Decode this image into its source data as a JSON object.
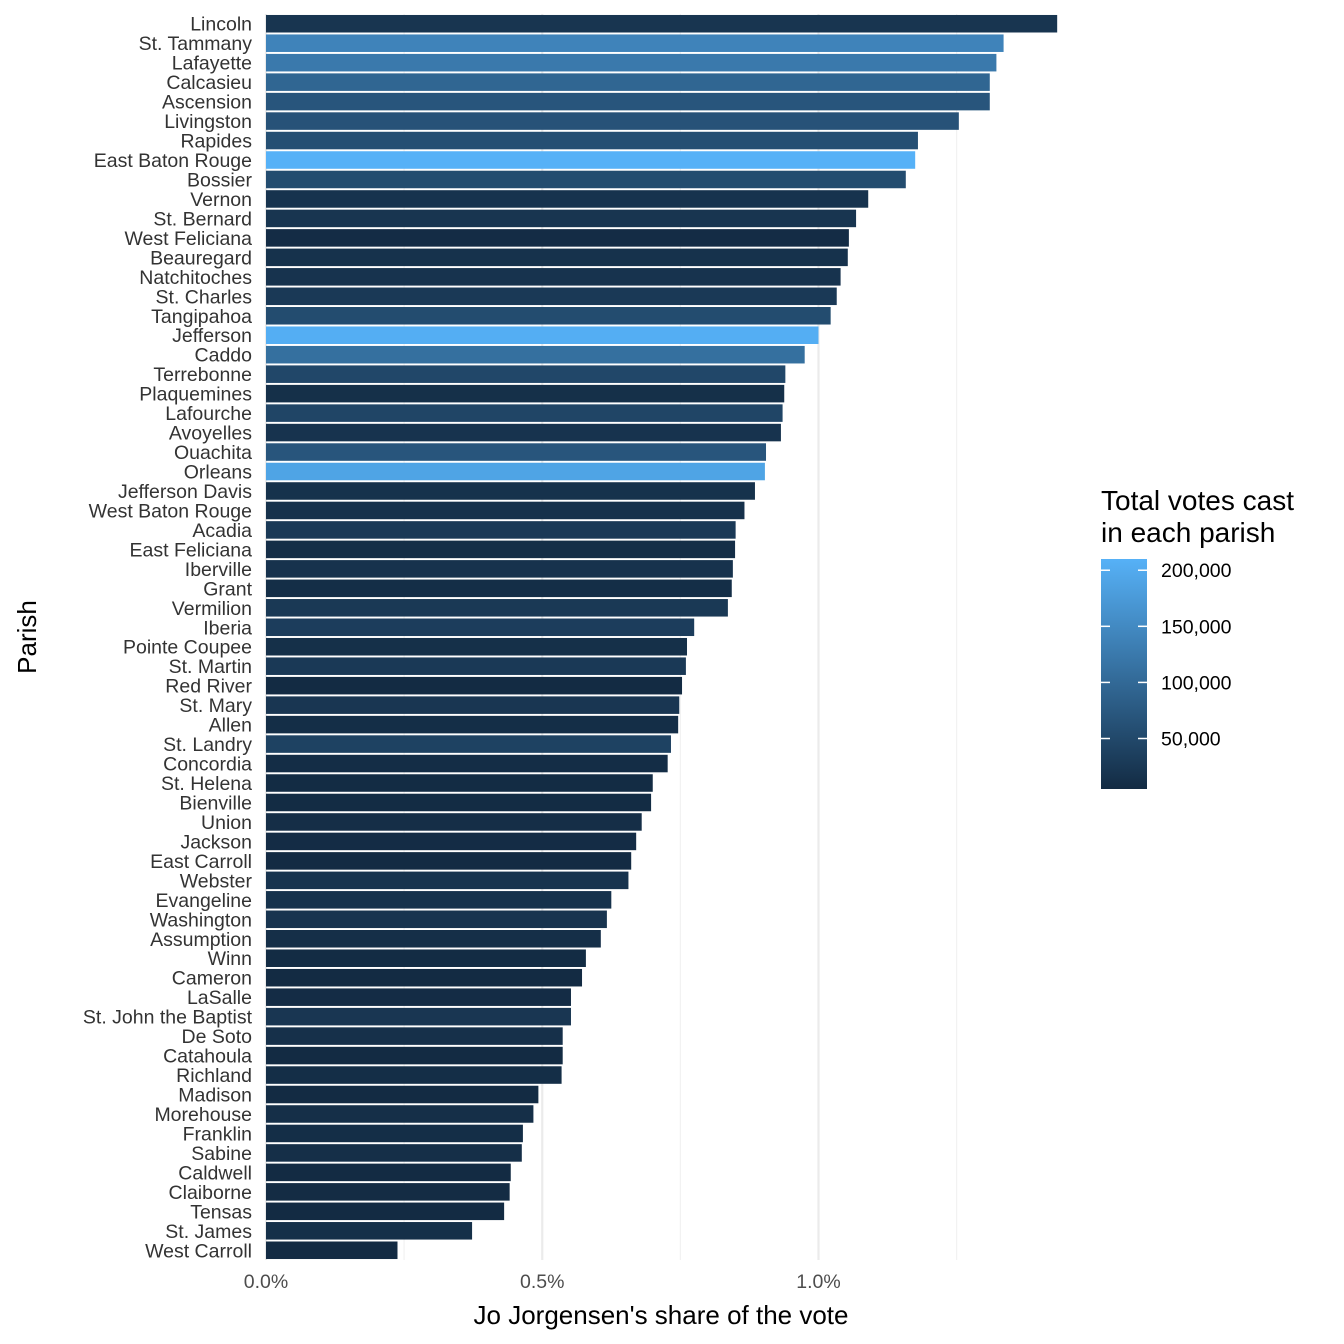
{
  "chart_data": {
    "type": "bar",
    "orientation": "horizontal",
    "title": "",
    "xlabel": "Jo Jorgensen's share of the vote",
    "ylabel": "Parish",
    "xlim": [
      0,
      0.0147
    ],
    "x_ticks": [
      {
        "value": 0,
        "label": "0.0%"
      },
      {
        "value": 0.005,
        "label": "0.5%"
      },
      {
        "value": 0.01,
        "label": "1.0%"
      }
    ],
    "x_minor_ticks": [
      0.0025,
      0.0075,
      0.0125
    ],
    "grid": true,
    "legend": {
      "title_lines": [
        "Total votes cast",
        "in each parish"
      ],
      "position": "right",
      "range": [
        5000,
        210000
      ],
      "ticks": [
        {
          "value": 50000,
          "label": "50,000"
        },
        {
          "value": 100000,
          "label": "100,000"
        },
        {
          "value": 150000,
          "label": "150,000"
        },
        {
          "value": 200000,
          "label": "200,000"
        }
      ],
      "color_low": "#132B43",
      "color_high": "#56B1F7"
    },
    "categories": [
      "Lincoln",
      "St. Tammany",
      "Lafayette",
      "Calcasieu",
      "Ascension",
      "Livingston",
      "Rapides",
      "East Baton Rouge",
      "Bossier",
      "Vernon",
      "St. Bernard",
      "West Feliciana",
      "Beauregard",
      "Natchitoches",
      "St. Charles",
      "Tangipahoa",
      "Jefferson",
      "Caddo",
      "Terrebonne",
      "Plaquemines",
      "Lafourche",
      "Avoyelles",
      "Ouachita",
      "Orleans",
      "Jefferson Davis",
      "West Baton Rouge",
      "Acadia",
      "East Feliciana",
      "Iberville",
      "Grant",
      "Vermilion",
      "Iberia",
      "Pointe Coupee",
      "St. Martin",
      "Red River",
      "St. Mary",
      "Allen",
      "St. Landry",
      "Concordia",
      "St. Helena",
      "Bienville",
      "Union",
      "Jackson",
      "East Carroll",
      "Webster",
      "Evangeline",
      "Washington",
      "Assumption",
      "Winn",
      "Cameron",
      "LaSalle",
      "St. John the Baptist",
      "De Soto",
      "Catahoula",
      "Richland",
      "Madison",
      "Morehouse",
      "Franklin",
      "Sabine",
      "Caldwell",
      "Claiborne",
      "Tensas",
      "St. James",
      "West Carroll"
    ],
    "values": [
      0.01432,
      0.01335,
      0.01322,
      0.0131,
      0.0131,
      0.01254,
      0.0118,
      0.01175,
      0.01158,
      0.0109,
      0.01068,
      0.01055,
      0.01053,
      0.0104,
      0.01033,
      0.01022,
      0.01,
      0.00975,
      0.0094,
      0.00938,
      0.00935,
      0.00932,
      0.00905,
      0.00903,
      0.00885,
      0.00866,
      0.0085,
      0.00849,
      0.00845,
      0.00843,
      0.00836,
      0.00775,
      0.00762,
      0.0076,
      0.00753,
      0.00748,
      0.00746,
      0.00733,
      0.00727,
      0.007,
      0.00697,
      0.0068,
      0.0067,
      0.00661,
      0.00656,
      0.00625,
      0.00617,
      0.00606,
      0.00579,
      0.00572,
      0.00552,
      0.00552,
      0.00537,
      0.00537,
      0.00535,
      0.00493,
      0.00484,
      0.00465,
      0.00463,
      0.00443,
      0.00441,
      0.00431,
      0.00373,
      0.00238
    ],
    "total_votes": [
      20000,
      140000,
      125000,
      95000,
      70000,
      65000,
      60000,
      210000,
      55000,
      17000,
      20000,
      7000,
      15000,
      17000,
      27000,
      55000,
      205000,
      110000,
      48000,
      12000,
      45000,
      18000,
      70000,
      190000,
      15000,
      14000,
      27000,
      10000,
      16000,
      9000,
      26000,
      33000,
      12000,
      27000,
      4000,
      22000,
      9000,
      40000,
      8000,
      6000,
      6500,
      10000,
      7000,
      3500,
      17000,
      15000,
      19000,
      11000,
      6000,
      4000,
      7000,
      22000,
      13000,
      4700,
      9000,
      4800,
      11000,
      9000,
      11000,
      4500,
      6600,
      2500,
      12000,
      5000
    ]
  }
}
